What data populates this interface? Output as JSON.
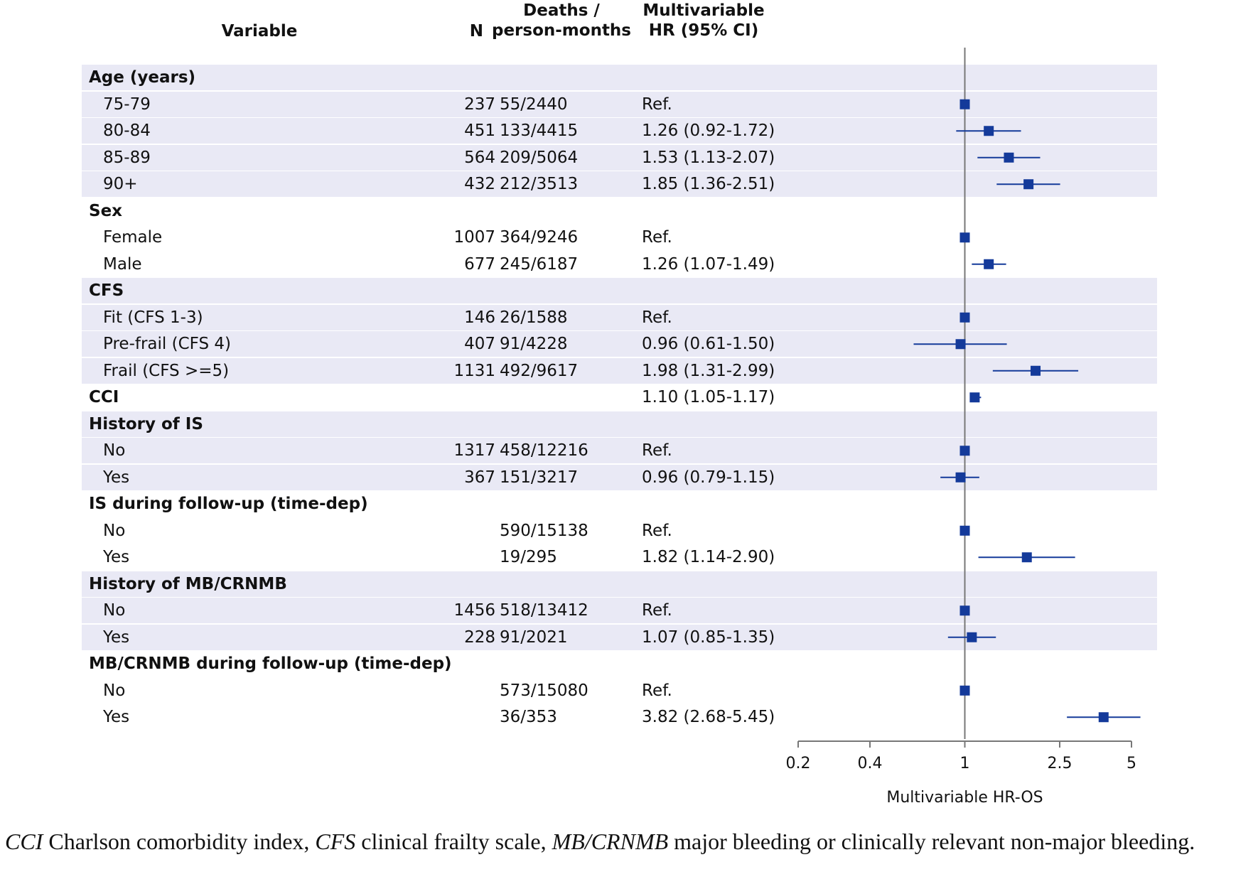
{
  "headers": {
    "variable": "Variable",
    "n": "N",
    "deaths_line1": "Deaths /",
    "deaths_line2": "person-months",
    "hr_line1": "Multivariable",
    "hr_line2": "HR (95% CI)"
  },
  "chart_data": {
    "type": "forest",
    "xlabel": "Multivariable HR-OS",
    "xscale": "log",
    "xlim": [
      0.2,
      5
    ],
    "xticks": [
      "0.2",
      "0.4",
      "1",
      "2.5",
      "5"
    ],
    "reference_line": 1,
    "colors": {
      "marker": "#143a9a",
      "shading": "#e9e9f5",
      "refline": "#777777"
    },
    "rows": [
      {
        "label": "Age (years)",
        "group": true,
        "shaded": true
      },
      {
        "label": "75-79",
        "n": "237",
        "deaths": "55/2440",
        "hr_text": "Ref.",
        "hr": 1,
        "lo": null,
        "hi": null,
        "shaded": true
      },
      {
        "label": "80-84",
        "n": "451",
        "deaths": "133/4415",
        "hr_text": "1.26 (0.92-1.72)",
        "hr": 1.26,
        "lo": 0.92,
        "hi": 1.72,
        "shaded": true
      },
      {
        "label": "85-89",
        "n": "564",
        "deaths": "209/5064",
        "hr_text": "1.53 (1.13-2.07)",
        "hr": 1.53,
        "lo": 1.13,
        "hi": 2.07,
        "shaded": true
      },
      {
        "label": "90+",
        "n": "432",
        "deaths": "212/3513",
        "hr_text": "1.85 (1.36-2.51)",
        "hr": 1.85,
        "lo": 1.36,
        "hi": 2.51,
        "shaded": true
      },
      {
        "label": "Sex",
        "group": true,
        "shaded": false
      },
      {
        "label": "Female",
        "n": "1007",
        "deaths": "364/9246",
        "hr_text": "Ref.",
        "hr": 1,
        "lo": null,
        "hi": null,
        "shaded": false
      },
      {
        "label": "Male",
        "n": "677",
        "deaths": "245/6187",
        "hr_text": "1.26 (1.07-1.49)",
        "hr": 1.26,
        "lo": 1.07,
        "hi": 1.49,
        "shaded": false
      },
      {
        "label": "CFS",
        "group": true,
        "shaded": true
      },
      {
        "label": "Fit (CFS 1-3)",
        "n": "146",
        "deaths": "26/1588",
        "hr_text": "Ref.",
        "hr": 1,
        "lo": null,
        "hi": null,
        "shaded": true
      },
      {
        "label": "Pre-frail (CFS 4)",
        "n": "407",
        "deaths": "91/4228",
        "hr_text": "0.96 (0.61-1.50)",
        "hr": 0.96,
        "lo": 0.61,
        "hi": 1.5,
        "shaded": true
      },
      {
        "label": "Frail (CFS >=5)",
        "n": "1131",
        "deaths": "492/9617",
        "hr_text": "1.98 (1.31-2.99)",
        "hr": 1.98,
        "lo": 1.31,
        "hi": 2.99,
        "shaded": true
      },
      {
        "label": "CCI",
        "group": true,
        "n": "",
        "deaths": "",
        "hr_text": "1.10 (1.05-1.17)",
        "hr": 1.1,
        "lo": 1.05,
        "hi": 1.17,
        "shaded": false
      },
      {
        "label": "History of IS",
        "group": true,
        "shaded": true
      },
      {
        "label": "No",
        "n": "1317",
        "deaths": "458/12216",
        "hr_text": "Ref.",
        "hr": 1,
        "lo": null,
        "hi": null,
        "shaded": true
      },
      {
        "label": "Yes",
        "n": "367",
        "deaths": "151/3217",
        "hr_text": "0.96 (0.79-1.15)",
        "hr": 0.96,
        "lo": 0.79,
        "hi": 1.15,
        "shaded": true
      },
      {
        "label": "IS during follow-up (time-dep)",
        "group": true,
        "shaded": false
      },
      {
        "label": "No",
        "n": "",
        "deaths": "590/15138",
        "hr_text": "Ref.",
        "hr": 1,
        "lo": null,
        "hi": null,
        "shaded": false
      },
      {
        "label": "Yes",
        "n": "",
        "deaths": "19/295",
        "hr_text": "1.82 (1.14-2.90)",
        "hr": 1.82,
        "lo": 1.14,
        "hi": 2.9,
        "shaded": false
      },
      {
        "label": "History of MB/CRNMB",
        "group": true,
        "shaded": true
      },
      {
        "label": "No",
        "n": "1456",
        "deaths": "518/13412",
        "hr_text": "Ref.",
        "hr": 1,
        "lo": null,
        "hi": null,
        "shaded": true
      },
      {
        "label": "Yes",
        "n": "228",
        "deaths": "91/2021",
        "hr_text": "1.07 (0.85-1.35)",
        "hr": 1.07,
        "lo": 0.85,
        "hi": 1.35,
        "shaded": true
      },
      {
        "label": "MB/CRNMB during follow-up (time-dep)",
        "group": true,
        "shaded": false
      },
      {
        "label": "No",
        "n": "",
        "deaths": "573/15080",
        "hr_text": "Ref.",
        "hr": 1,
        "lo": null,
        "hi": null,
        "shaded": false
      },
      {
        "label": "Yes",
        "n": "",
        "deaths": "36/353",
        "hr_text": "3.82 (2.68-5.45)",
        "hr": 3.82,
        "lo": 2.68,
        "hi": 5.45,
        "shaded": false
      }
    ]
  },
  "caption": {
    "parts": [
      {
        "text": "CCI",
        "italic": true
      },
      {
        "text": " Charlson comorbidity index, ",
        "italic": false
      },
      {
        "text": "CFS",
        "italic": true
      },
      {
        "text": " clinical frailty scale, ",
        "italic": false
      },
      {
        "text": "MB/CRNMB",
        "italic": true
      },
      {
        "text": " major bleeding or clinically relevant non-major bleeding.",
        "italic": false
      }
    ]
  }
}
